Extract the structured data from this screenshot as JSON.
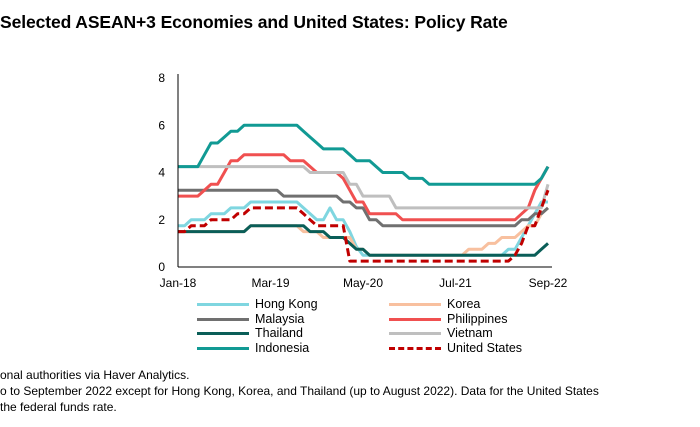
{
  "title": "Selected ASEAN+3 Economies and United States: Policy Rate",
  "notes": [
    "onal authorities via Haver Analytics.",
    "o to September 2022 except for Hong Kong, Korea, and Thailand (up to August 2022). Data for the United States",
    " the federal funds rate."
  ],
  "chart_data": {
    "type": "line",
    "title": "Selected ASEAN+3 Economies and United States: Policy Rate",
    "xlabel": "",
    "ylabel": "",
    "ylim": [
      0,
      8
    ],
    "yticks": [
      0,
      2,
      4,
      6,
      8
    ],
    "xtick_labels": [
      "Jan-18",
      "Mar-19",
      "May-20",
      "Jul-21",
      "Sep-22"
    ],
    "xtick_index": [
      0,
      14,
      28,
      42,
      56
    ],
    "x_start": "Jan-18",
    "x_end": "Sep-22",
    "frequency": "monthly",
    "grid": false,
    "legend_position": "bottom",
    "series": [
      {
        "name": "Hong Kong",
        "color": "#7fd6e0",
        "dashed": false,
        "values": [
          1.75,
          1.75,
          2.0,
          2.0,
          2.0,
          2.25,
          2.25,
          2.25,
          2.5,
          2.5,
          2.5,
          2.75,
          2.75,
          2.75,
          2.75,
          2.75,
          2.75,
          2.75,
          2.75,
          2.5,
          2.25,
          2.0,
          2.0,
          2.5,
          2.0,
          2.0,
          1.5,
          0.86,
          0.5,
          0.5,
          0.5,
          0.5,
          0.5,
          0.5,
          0.5,
          0.5,
          0.5,
          0.5,
          0.5,
          0.5,
          0.5,
          0.5,
          0.5,
          0.5,
          0.5,
          0.5,
          0.5,
          0.5,
          0.5,
          0.5,
          0.75,
          0.75,
          1.25,
          1.75,
          2.25,
          2.75,
          2.75
        ]
      },
      {
        "name": "Korea",
        "color": "#f8c09f",
        "dashed": false,
        "values": [
          1.5,
          1.5,
          1.5,
          1.5,
          1.5,
          1.5,
          1.5,
          1.5,
          1.5,
          1.5,
          1.5,
          1.75,
          1.75,
          1.75,
          1.75,
          1.75,
          1.75,
          1.75,
          1.75,
          1.5,
          1.5,
          1.5,
          1.25,
          1.25,
          1.25,
          1.25,
          1.25,
          0.75,
          0.75,
          0.5,
          0.5,
          0.5,
          0.5,
          0.5,
          0.5,
          0.5,
          0.5,
          0.5,
          0.5,
          0.5,
          0.5,
          0.5,
          0.5,
          0.5,
          0.75,
          0.75,
          0.75,
          1.0,
          1.0,
          1.25,
          1.25,
          1.25,
          1.5,
          1.75,
          1.75,
          2.25,
          2.5
        ]
      },
      {
        "name": "Malaysia",
        "color": "#707070",
        "dashed": false,
        "values": [
          3.25,
          3.25,
          3.25,
          3.25,
          3.25,
          3.25,
          3.25,
          3.25,
          3.25,
          3.25,
          3.25,
          3.25,
          3.25,
          3.25,
          3.25,
          3.25,
          3.0,
          3.0,
          3.0,
          3.0,
          3.0,
          3.0,
          3.0,
          3.0,
          3.0,
          2.75,
          2.75,
          2.5,
          2.5,
          2.0,
          2.0,
          1.75,
          1.75,
          1.75,
          1.75,
          1.75,
          1.75,
          1.75,
          1.75,
          1.75,
          1.75,
          1.75,
          1.75,
          1.75,
          1.75,
          1.75,
          1.75,
          1.75,
          1.75,
          1.75,
          1.75,
          1.75,
          2.0,
          2.0,
          2.25,
          2.25,
          2.5
        ]
      },
      {
        "name": "Philippines",
        "color": "#f05050",
        "dashed": false,
        "values": [
          3.0,
          3.0,
          3.0,
          3.0,
          3.25,
          3.5,
          3.5,
          4.0,
          4.5,
          4.5,
          4.75,
          4.75,
          4.75,
          4.75,
          4.75,
          4.75,
          4.75,
          4.5,
          4.5,
          4.5,
          4.25,
          4.0,
          4.0,
          4.0,
          4.0,
          3.75,
          3.25,
          2.75,
          2.75,
          2.25,
          2.25,
          2.25,
          2.25,
          2.25,
          2.0,
          2.0,
          2.0,
          2.0,
          2.0,
          2.0,
          2.0,
          2.0,
          2.0,
          2.0,
          2.0,
          2.0,
          2.0,
          2.0,
          2.0,
          2.0,
          2.0,
          2.0,
          2.25,
          2.5,
          3.25,
          3.75,
          4.25
        ]
      },
      {
        "name": "Thailand",
        "color": "#0a5e58",
        "dashed": false,
        "values": [
          1.5,
          1.5,
          1.5,
          1.5,
          1.5,
          1.5,
          1.5,
          1.5,
          1.5,
          1.5,
          1.5,
          1.75,
          1.75,
          1.75,
          1.75,
          1.75,
          1.75,
          1.75,
          1.75,
          1.75,
          1.5,
          1.5,
          1.5,
          1.25,
          1.25,
          1.25,
          1.0,
          0.75,
          0.75,
          0.5,
          0.5,
          0.5,
          0.5,
          0.5,
          0.5,
          0.5,
          0.5,
          0.5,
          0.5,
          0.5,
          0.5,
          0.5,
          0.5,
          0.5,
          0.5,
          0.5,
          0.5,
          0.5,
          0.5,
          0.5,
          0.5,
          0.5,
          0.5,
          0.5,
          0.5,
          0.75,
          1.0
        ]
      },
      {
        "name": "Vietnam",
        "color": "#bfbfbf",
        "dashed": false,
        "values": [
          4.25,
          4.25,
          4.25,
          4.25,
          4.25,
          4.25,
          4.25,
          4.25,
          4.25,
          4.25,
          4.25,
          4.25,
          4.25,
          4.25,
          4.25,
          4.25,
          4.25,
          4.25,
          4.25,
          4.25,
          4.0,
          4.0,
          4.0,
          4.0,
          4.0,
          4.0,
          3.5,
          3.5,
          3.0,
          3.0,
          3.0,
          3.0,
          3.0,
          2.5,
          2.5,
          2.5,
          2.5,
          2.5,
          2.5,
          2.5,
          2.5,
          2.5,
          2.5,
          2.5,
          2.5,
          2.5,
          2.5,
          2.5,
          2.5,
          2.5,
          2.5,
          2.5,
          2.5,
          2.5,
          2.5,
          2.5,
          3.5
        ]
      },
      {
        "name": "Indonesia",
        "color": "#119a94",
        "dashed": false,
        "values": [
          4.25,
          4.25,
          4.25,
          4.25,
          4.75,
          5.25,
          5.25,
          5.5,
          5.75,
          5.75,
          6.0,
          6.0,
          6.0,
          6.0,
          6.0,
          6.0,
          6.0,
          6.0,
          6.0,
          5.75,
          5.5,
          5.25,
          5.0,
          5.0,
          5.0,
          5.0,
          4.75,
          4.5,
          4.5,
          4.5,
          4.25,
          4.0,
          4.0,
          4.0,
          4.0,
          3.75,
          3.75,
          3.75,
          3.5,
          3.5,
          3.5,
          3.5,
          3.5,
          3.5,
          3.5,
          3.5,
          3.5,
          3.5,
          3.5,
          3.5,
          3.5,
          3.5,
          3.5,
          3.5,
          3.5,
          3.75,
          4.25
        ]
      },
      {
        "name": "United States",
        "color": "#c00000",
        "dashed": true,
        "values": [
          1.5,
          1.5,
          1.75,
          1.75,
          1.75,
          2.0,
          2.0,
          2.0,
          2.0,
          2.25,
          2.25,
          2.5,
          2.5,
          2.5,
          2.5,
          2.5,
          2.5,
          2.5,
          2.5,
          2.25,
          2.0,
          1.75,
          1.75,
          1.75,
          1.75,
          1.75,
          0.25,
          0.25,
          0.25,
          0.25,
          0.25,
          0.25,
          0.25,
          0.25,
          0.25,
          0.25,
          0.25,
          0.25,
          0.25,
          0.25,
          0.25,
          0.25,
          0.25,
          0.25,
          0.25,
          0.25,
          0.25,
          0.25,
          0.25,
          0.25,
          0.25,
          0.5,
          1.0,
          1.75,
          1.75,
          2.5,
          3.25
        ]
      }
    ]
  }
}
